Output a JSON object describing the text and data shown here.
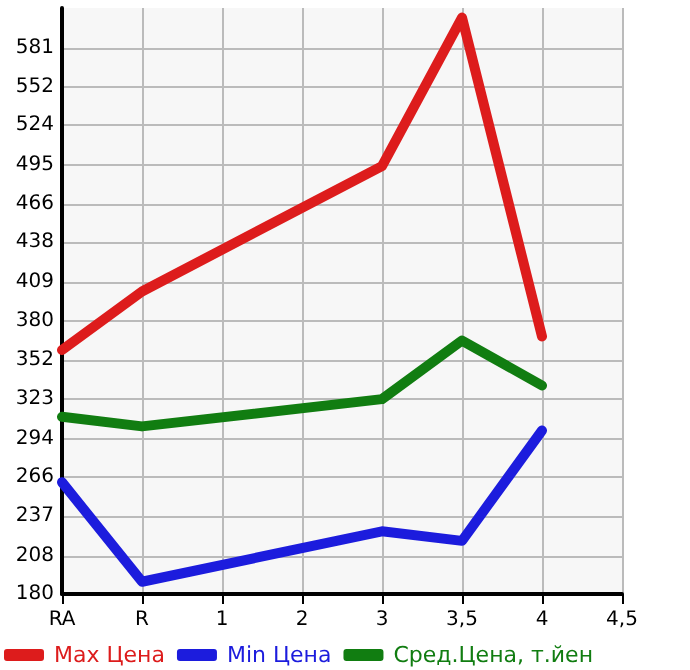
{
  "chart_data": {
    "type": "line",
    "categories": [
      "RA",
      "R",
      "1",
      "2",
      "3",
      "3,5",
      "4",
      "4,5"
    ],
    "series": [
      {
        "name": "Max Цена",
        "color": "#dd1c1c",
        "values": [
          359,
          402,
          null,
          null,
          494,
          603,
          369,
          null
        ]
      },
      {
        "name": "Min Цена",
        "color": "#1c1cdd",
        "values": [
          262,
          189,
          null,
          null,
          226,
          219,
          300,
          null
        ]
      },
      {
        "name": "Сред.Цена, т.йен",
        "color": "#117d11",
        "values": [
          310,
          303,
          null,
          null,
          323,
          366,
          333,
          null
        ]
      }
    ],
    "ylim": [
      180,
      610
    ],
    "yticks": [
      180,
      208,
      237,
      266,
      294,
      323,
      352,
      380,
      409,
      438,
      466,
      495,
      524,
      552,
      581
    ],
    "grid": true,
    "legend": "bottom",
    "marker": "none",
    "line_style": "solid"
  }
}
